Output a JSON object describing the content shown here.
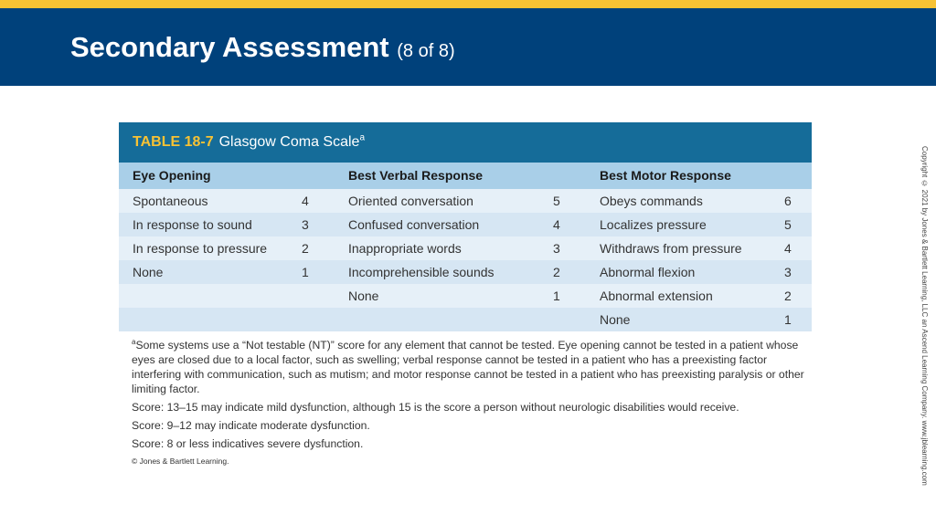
{
  "slide": {
    "title": "Secondary Assessment",
    "subtitle": "(8 of 8)",
    "copyright": "Copyright © 2021 by Jones & Bartlett Learning, LLC an Ascend Learning Company. www.jblearning.com"
  },
  "table": {
    "number": "TABLE 18-7",
    "caption": "Glasgow Coma Scale",
    "caption_sup": "a",
    "headers": [
      "Eye Opening",
      "Best Verbal Response",
      "Best Motor Response"
    ],
    "rows": [
      [
        "Spontaneous",
        "4",
        "Oriented conversation",
        "5",
        "Obeys commands",
        "6"
      ],
      [
        "In response to sound",
        "3",
        "Confused conversation",
        "4",
        "Localizes pressure",
        "5"
      ],
      [
        "In response to pressure",
        "2",
        "Inappropriate words",
        "3",
        "Withdraws from pressure",
        "4"
      ],
      [
        "None",
        "1",
        "Incomprehensible sounds",
        "2",
        "Abnormal flexion",
        "3"
      ],
      [
        "",
        "",
        "None",
        "1",
        "Abnormal extension",
        "2"
      ],
      [
        "",
        "",
        "",
        "",
        "None",
        "1"
      ]
    ],
    "footnote_sup": "a",
    "footnote": "Some systems use a “Not testable (NT)” score for any element that cannot be tested. Eye opening cannot be tested in a patient whose eyes are closed due to a local factor, such as swelling; verbal response cannot be tested in a patient who has a preexisting factor interfering with communication, such as mutism; and motor response cannot be tested in a patient who has preexisting paralysis or other limiting factor.",
    "scores": [
      "Score: 13–15 may indicate mild dysfunction, although 15 is the score a person without neurologic disabilities would receive.",
      "Score: 9–12 may indicate moderate dysfunction.",
      "Score: 8 or less indicatives severe dysfunction."
    ],
    "credit": "© Jones & Bartlett Learning."
  }
}
